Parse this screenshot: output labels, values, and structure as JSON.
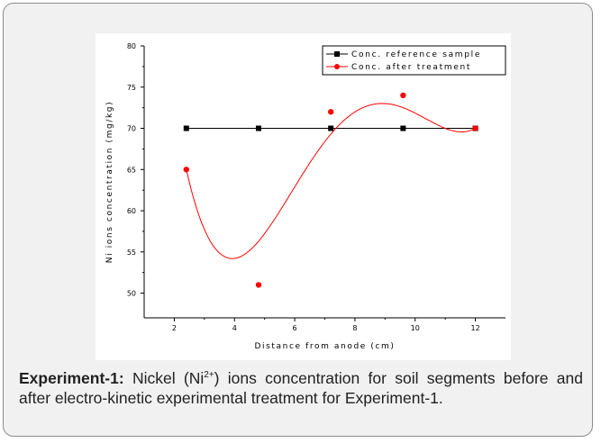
{
  "chart_data": {
    "type": "line",
    "xlabel": "Distance from anode (cm)",
    "ylabel": "Ni ions concentration (mg/kg)",
    "xlim": [
      1,
      13
    ],
    "ylim": [
      47,
      80
    ],
    "xticks": [
      2,
      4,
      6,
      8,
      10,
      12
    ],
    "yticks": [
      50,
      55,
      60,
      65,
      70,
      75,
      80
    ],
    "grid": false,
    "legend_position": "top-right",
    "series": [
      {
        "name": "Conc. reference sample",
        "color": "#000000",
        "marker": "square",
        "style": "straight line",
        "x": [
          2.4,
          4.8,
          7.2,
          9.6,
          12
        ],
        "y": [
          70,
          70,
          70,
          70,
          70
        ]
      },
      {
        "name": "Conc. after treatment",
        "color": "#ff0000",
        "marker": "circle",
        "style": "smooth curve",
        "x": [
          2.4,
          4.8,
          7.2,
          9.6,
          12
        ],
        "y": [
          65,
          51,
          72,
          74,
          70
        ]
      }
    ]
  },
  "caption": {
    "label": "Experiment-1:",
    "text_before": " Nickel (Ni",
    "superscript": "2+",
    "text_after": ") ions concentration for soil segments before and after electro-kinetic experimental treatment for Experiment-1."
  }
}
